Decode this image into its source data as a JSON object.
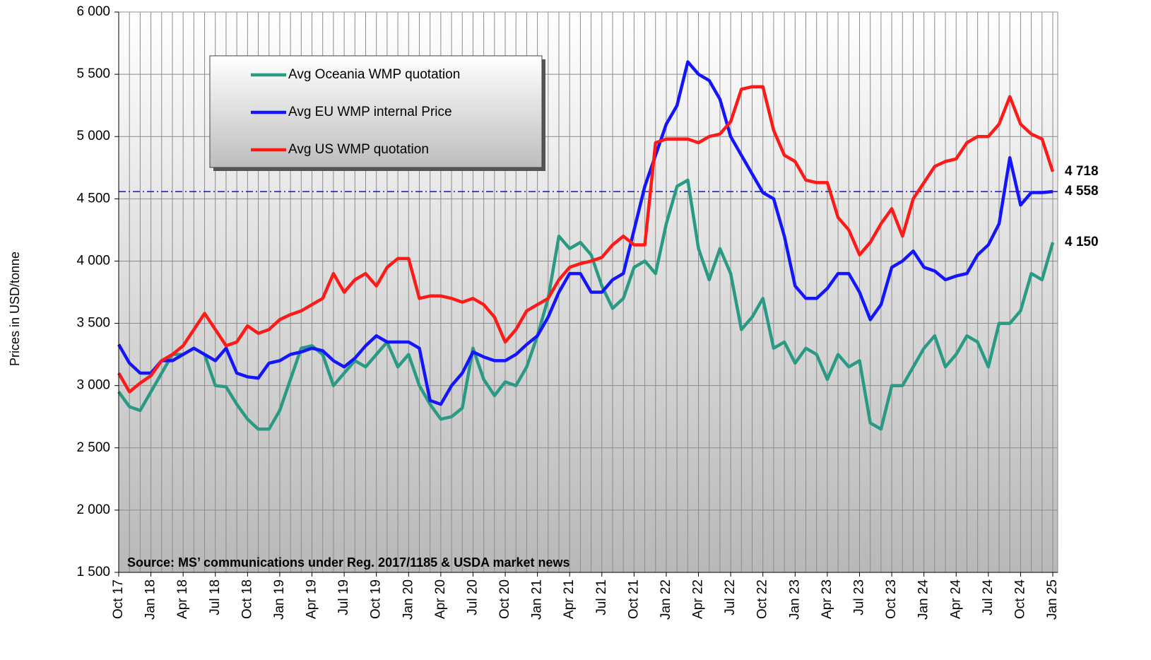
{
  "chart_data": {
    "type": "line",
    "y_label": "Prices in USD/tonne",
    "source": "Source: MS’ communications under Reg. 2017/1185  & USDA market news",
    "categories": [
      "Oct 17",
      null,
      null,
      "Jan 18",
      null,
      null,
      "Apr 18",
      null,
      null,
      "Jul 18",
      null,
      null,
      "Oct 18",
      null,
      null,
      "Jan 19",
      null,
      null,
      "Apr 19",
      null,
      null,
      "Jul 19",
      null,
      null,
      "Oct 19",
      null,
      null,
      "Jan 20",
      null,
      null,
      "Apr 20",
      null,
      null,
      "Jul 20",
      null,
      null,
      "Oct 20",
      null,
      null,
      "Jan 21",
      null,
      null,
      "Apr 21",
      null,
      null,
      "Jul 21",
      null,
      null,
      "Oct 21",
      null,
      null,
      "Jan 22",
      null,
      null,
      "Apr 22",
      null,
      null,
      "Jul 22",
      null,
      null,
      "Oct 22",
      null,
      null,
      "Jan 23",
      null,
      null,
      "Apr 23",
      null,
      null,
      "Jul 23",
      null,
      null,
      "Oct 23",
      null,
      null,
      "Jan 24",
      null,
      null,
      "Apr 24",
      null,
      null,
      "Jul 24",
      null,
      null,
      "Oct 24",
      null,
      null,
      "Jan 25"
    ],
    "series": [
      {
        "name": "Avg Oceania WMP quotation",
        "color": "#2a9a85",
        "label_color": "#2e9e6a",
        "end_label": "4 150",
        "values": [
          2950,
          2830,
          2800,
          2950,
          3100,
          3250,
          3250,
          3300,
          3250,
          3000,
          2990,
          2850,
          2730,
          2650,
          2650,
          2800,
          3050,
          3300,
          3320,
          3250,
          3000,
          3100,
          3200,
          3150,
          3250,
          3350,
          3150,
          3250,
          3000,
          2850,
          2730,
          2750,
          2820,
          3300,
          3050,
          2920,
          3030,
          3000,
          3150,
          3400,
          3700,
          4200,
          4100,
          4150,
          4050,
          3800,
          3620,
          3700,
          3950,
          4000,
          3900,
          4300,
          4600,
          4650,
          4100,
          3850,
          4100,
          3900,
          3450,
          3550,
          3700,
          3300,
          3350,
          3180,
          3300,
          3250,
          3050,
          3250,
          3150,
          3200,
          2700,
          2650,
          3000,
          3000,
          3150,
          3300,
          3400,
          3150,
          3250,
          3400,
          3350,
          3150,
          3500,
          3500,
          3600,
          3900,
          3850,
          4150
        ]
      },
      {
        "name": "Avg EU WMP internal Price",
        "color": "#1414ff",
        "label_color": "#1414ff",
        "end_label": "4 558",
        "values": [
          3330,
          3180,
          3100,
          3100,
          3200,
          3200,
          3250,
          3300,
          3250,
          3200,
          3300,
          3100,
          3070,
          3060,
          3180,
          3200,
          3250,
          3270,
          3300,
          3280,
          3200,
          3150,
          3220,
          3320,
          3400,
          3350,
          3350,
          3350,
          3300,
          2880,
          2850,
          3000,
          3100,
          3270,
          3230,
          3200,
          3200,
          3250,
          3330,
          3400,
          3550,
          3750,
          3900,
          3900,
          3750,
          3750,
          3850,
          3900,
          4250,
          4600,
          4850,
          5100,
          5250,
          5600,
          5500,
          5450,
          5300,
          5000,
          4850,
          4700,
          4550,
          4500,
          4200,
          3800,
          3700,
          3700,
          3780,
          3900,
          3900,
          3750,
          3530,
          3650,
          3950,
          4000,
          4080,
          3950,
          3920,
          3850,
          3880,
          3900,
          4050,
          4130,
          4300,
          4830,
          4450,
          4550,
          4550,
          4558
        ]
      },
      {
        "name": "Avg US WMP quotation",
        "color": "#ff1a1a",
        "label_color": "#ff1a1a",
        "end_label": "4 718",
        "values": [
          3100,
          2950,
          3020,
          3080,
          3200,
          3250,
          3320,
          3450,
          3580,
          3450,
          3320,
          3350,
          3480,
          3420,
          3450,
          3530,
          3570,
          3600,
          3650,
          3700,
          3900,
          3750,
          3850,
          3900,
          3800,
          3950,
          4020,
          4020,
          3700,
          3720,
          3720,
          3700,
          3670,
          3700,
          3650,
          3550,
          3350,
          3450,
          3600,
          3650,
          3700,
          3850,
          3950,
          3980,
          4000,
          4030,
          4130,
          4200,
          4130,
          4130,
          4950,
          4980,
          4980,
          4980,
          4950,
          5000,
          5020,
          5120,
          5380,
          5400,
          5400,
          5050,
          4850,
          4800,
          4650,
          4630,
          4630,
          4350,
          4250,
          4050,
          4150,
          4300,
          4420,
          4200,
          4500,
          4630,
          4760,
          4800,
          4820,
          4950,
          5000,
          5000,
          5100,
          5320,
          5100,
          5020,
          4980,
          4718
        ]
      }
    ],
    "reference_line": {
      "value": 4558,
      "color": "#1414cc"
    },
    "ylim": [
      1500,
      6000
    ],
    "yticks": [
      {
        "value": 1500,
        "label": "1 500"
      },
      {
        "value": 2000,
        "label": "2 000"
      },
      {
        "value": 2500,
        "label": "2 500"
      },
      {
        "value": 3000,
        "label": "3 000"
      },
      {
        "value": 3500,
        "label": "3 500"
      },
      {
        "value": 4000,
        "label": "4 000"
      },
      {
        "value": 4500,
        "label": "4 500"
      },
      {
        "value": 5000,
        "label": "5 000"
      },
      {
        "value": 5500,
        "label": "5 500"
      },
      {
        "value": 6000,
        "label": "6 000"
      }
    ],
    "grid": true
  }
}
